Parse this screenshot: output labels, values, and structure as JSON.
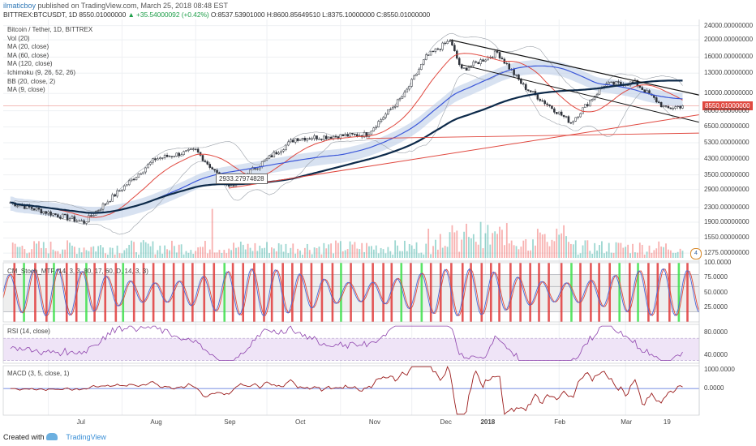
{
  "header": {
    "user": "ilmaticboy",
    "published": "published on TradingView.com, March 25, 2018 08:48 EST",
    "symbol_line_pre": "BITTREX:BTCUSDT, 1D  8550.01000000",
    "change": "▲ +35.54000092 (+0.42%)",
    "ohlc": "O:8537.53901000 H:8600.85649510 L:8375.10000000 C:8550.01000000"
  },
  "legend": [
    "Bitcoin / Tether, 1D, BITTREX",
    "Vol (20)",
    "MA (20, close)",
    "MA (60, close)",
    "MA (120, close)",
    "Ichimoku (9, 26, 52, 26)",
    "BB (20, close, 2)",
    "MA (9, close)"
  ],
  "panes": {
    "stoch_label": "CM_Stoch_MTF (14, 3, 3, 80, 17, 60, D, 14, 3, 3)",
    "rsi_label": "RSI (14, close)",
    "macd_label": "MACD (3, 5, close, 1)"
  },
  "price_tag": "8550.01000000",
  "annotation": "2933.27974828",
  "badge": "4",
  "footer": {
    "created": "Created with",
    "brand": "TradingView"
  },
  "colors": {
    "up": "#26a69a",
    "down": "#ef5350",
    "ma20": "#e0483f",
    "ma60": "#3b57d9",
    "ma120": "#0d2a4a",
    "trend": "#111111",
    "support": "#e0483f",
    "cloud": "#b8cbe6",
    "rsi": "#8e44ad",
    "macd": "#9b1c1c"
  },
  "chart_data": [
    {
      "type": "candlestick",
      "title": "Bitcoin / Tether, 1D, BITTREX",
      "scale": "log",
      "y_ticks": [
        "24000.00000000",
        "20000.00000000",
        "16000.00000000",
        "13000.00000000",
        "10000.00000000",
        "8000.00000000",
        "6500.00000000",
        "5300.00000000",
        "4300.00000000",
        "3500.00000000",
        "2900.00000000",
        "2300.00000000",
        "1900.00000000",
        "1550.00000000",
        "1275.00000000"
      ],
      "y_tick_values": [
        24000,
        20000,
        16000,
        13000,
        10000,
        8000,
        6500,
        5300,
        4300,
        3500,
        2900,
        2300,
        1900,
        1550,
        1275
      ],
      "x_ticks": [
        "Jul",
        "Aug",
        "Sep",
        "Oct",
        "Nov",
        "Dec",
        "2018",
        "Feb",
        "Mar",
        "19"
      ],
      "x_ticks_bold": [
        "2018"
      ],
      "anchors": [
        {
          "date": "2017-06-15",
          "close": 2450
        },
        {
          "date": "2017-07-16",
          "close": 1900
        },
        {
          "date": "2017-08-15",
          "close": 4300
        },
        {
          "date": "2017-09-01",
          "close": 4800
        },
        {
          "date": "2017-09-15",
          "close": 3000
        },
        {
          "date": "2017-10-13",
          "close": 5600
        },
        {
          "date": "2017-11-12",
          "close": 5900
        },
        {
          "date": "2017-11-28",
          "close": 9900
        },
        {
          "date": "2017-12-07",
          "close": 16000
        },
        {
          "date": "2017-12-17",
          "close": 19800
        },
        {
          "date": "2017-12-22",
          "close": 13500
        },
        {
          "date": "2018-01-06",
          "close": 17000
        },
        {
          "date": "2018-01-17",
          "close": 11000
        },
        {
          "date": "2018-02-06",
          "close": 6900
        },
        {
          "date": "2018-02-20",
          "close": 11200
        },
        {
          "date": "2018-03-05",
          "close": 11500
        },
        {
          "date": "2018-03-18",
          "close": 8200
        },
        {
          "date": "2018-03-25",
          "close": 8550
        }
      ],
      "last_close": 8550.01,
      "annotation_value": 2933.27974828
    },
    {
      "type": "line",
      "title": "CM_Stoch_MTF (14, 3, 3, 80, 17, 60, D, 14, 3, 3)",
      "y_ticks": [
        "100.0000",
        "75.0000",
        "50.0000",
        "25.0000"
      ],
      "y_tick_values": [
        100,
        75,
        50,
        25
      ],
      "ylim": [
        0,
        100
      ]
    },
    {
      "type": "line",
      "title": "RSI (14, close)",
      "y_ticks": [
        "80.0000",
        "40.0000"
      ],
      "y_tick_values": [
        80,
        40
      ],
      "ylim": [
        25,
        95
      ]
    },
    {
      "type": "line",
      "title": "MACD (3, 5, close, 1)",
      "y_ticks": [
        "1000.0000",
        "0.0000"
      ],
      "y_tick_values": [
        1000,
        0
      ],
      "ylim": [
        -1400,
        1200
      ]
    }
  ]
}
